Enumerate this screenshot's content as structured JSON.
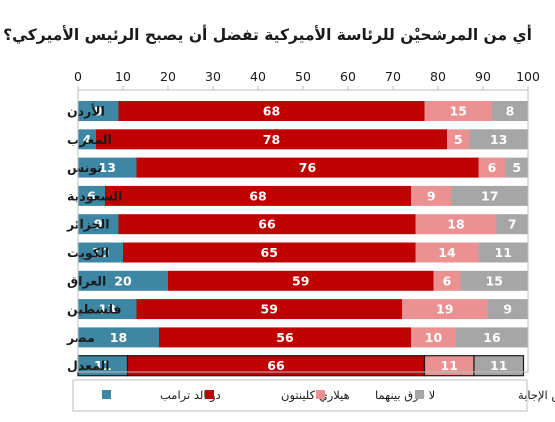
{
  "chart_data": {
    "type": "bar",
    "stacked": true,
    "orientation": "horizontal",
    "title": "أي من المرشحيْن للرئاسة الأميركية تفضل أن يصبح الرئيس الأميركي؟",
    "xlim": [
      0,
      100
    ],
    "ticks": [
      "0",
      "10",
      "20",
      "30",
      "40",
      "50",
      "60",
      "70",
      "80",
      "90",
      "100"
    ],
    "grid": false,
    "legend_position": "bottom",
    "categories": [
      "الأردن",
      "المغرب",
      "تونس",
      "السعودية",
      "الجزائر",
      "الكويت",
      "العراق",
      "فلسطين",
      "مصر",
      "المعدل"
    ],
    "series": [
      {
        "name": "دونالد ترامب",
        "color": "#3d87a5",
        "values": [
          9,
          4,
          13,
          6,
          9,
          10,
          20,
          13,
          18,
          11
        ]
      },
      {
        "name": "هيلاري كلينتون",
        "color": "#c00000",
        "values": [
          68,
          78,
          76,
          68,
          66,
          65,
          59,
          59,
          56,
          66
        ]
      },
      {
        "name": "لا فرق بينهما",
        "color": "#eb9191",
        "values": [
          15,
          5,
          6,
          9,
          18,
          14,
          6,
          19,
          10,
          11
        ]
      },
      {
        "name": "لا أعرف /رفض الإجابة",
        "color": "#a6a6a6",
        "values": [
          8,
          13,
          5,
          17,
          7,
          11,
          15,
          9,
          16,
          11
        ]
      }
    ],
    "highlighted_category": "المعدل"
  }
}
